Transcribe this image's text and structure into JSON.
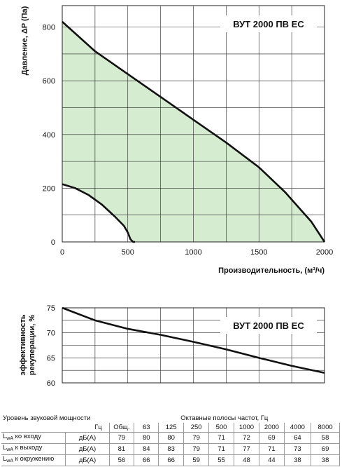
{
  "colors": {
    "fill": "#d6ecd1",
    "line": "#111111",
    "grid": "#222222"
  },
  "charts": {
    "pressure": {
      "model": "ВУТ 2000 ПВ ЕС",
      "ylabel": "Давление, ΔP (Па)",
      "xlabel": "Производительность, (м³/ч)"
    },
    "efficiency": {
      "model": "ВУТ 2000 ПВ ЕС",
      "ylabel_line1": "эффективность",
      "ylabel_line2": "рекуперации, %"
    }
  },
  "chart_data": [
    {
      "type": "area",
      "title": "ВУТ 2000 ПВ ЕС",
      "xlabel": "Производительность, (м³/ч)",
      "ylabel": "Давление, ΔP (Па)",
      "xlim": [
        0,
        2000
      ],
      "ylim": [
        0,
        880
      ],
      "x_ticks": [
        0,
        500,
        1000,
        1500,
        2000
      ],
      "y_ticks": [
        0,
        200,
        400,
        600,
        800
      ],
      "grid": true,
      "series": [
        {
          "name": "",
          "x": [
            0,
            250,
            500,
            750,
            1000,
            1250,
            1500,
            1700,
            1800,
            1900,
            2000
          ],
          "y": [
            820,
            710,
            625,
            540,
            455,
            370,
            278,
            185,
            130,
            75,
            0
          ]
        },
        {
          "name": "",
          "x": [
            0,
            100,
            200,
            300,
            400,
            470,
            500,
            520,
            540,
            555
          ],
          "y": [
            215,
            200,
            175,
            140,
            95,
            60,
            35,
            10,
            0,
            0
          ]
        }
      ]
    },
    {
      "type": "line",
      "title": "ВУТ 2000 ПВ ЕС",
      "xlabel": "",
      "ylabel": "эффективность рекуперации, %",
      "xlim": [
        0,
        2000
      ],
      "ylim": [
        60,
        75
      ],
      "y_ticks": [
        60,
        65,
        70,
        75
      ],
      "grid": true,
      "series": [
        {
          "name": "",
          "x": [
            0,
            250,
            500,
            750,
            1000,
            1250,
            1500,
            1750,
            2000
          ],
          "y": [
            75,
            72.5,
            70.8,
            69.6,
            68.2,
            66.7,
            65.0,
            63.4,
            62.0
          ]
        }
      ]
    }
  ],
  "sound_table": {
    "title_left": "Уровень звуковой мощности",
    "title_right": "Октавные полосы частот, Гц",
    "hz_label": "Гц",
    "headers": [
      "Общ.",
      "63",
      "125",
      "250",
      "500",
      "1000",
      "2000",
      "4000",
      "8000"
    ],
    "rows": [
      {
        "sub": "wA",
        "label": " ко входу",
        "unit": "дБ(А)",
        "values": [
          "79",
          "80",
          "80",
          "79",
          "71",
          "72",
          "69",
          "64",
          "58"
        ]
      },
      {
        "sub": "wA",
        "label": " к выходу",
        "unit": "дБ(А)",
        "values": [
          "81",
          "84",
          "83",
          "79",
          "71",
          "77",
          "71",
          "73",
          "69"
        ]
      },
      {
        "sub": "wA",
        "label": " к окружению",
        "unit": "дБ(А)",
        "values": [
          "56",
          "66",
          "66",
          "59",
          "55",
          "48",
          "44",
          "38",
          "38"
        ]
      }
    ]
  }
}
